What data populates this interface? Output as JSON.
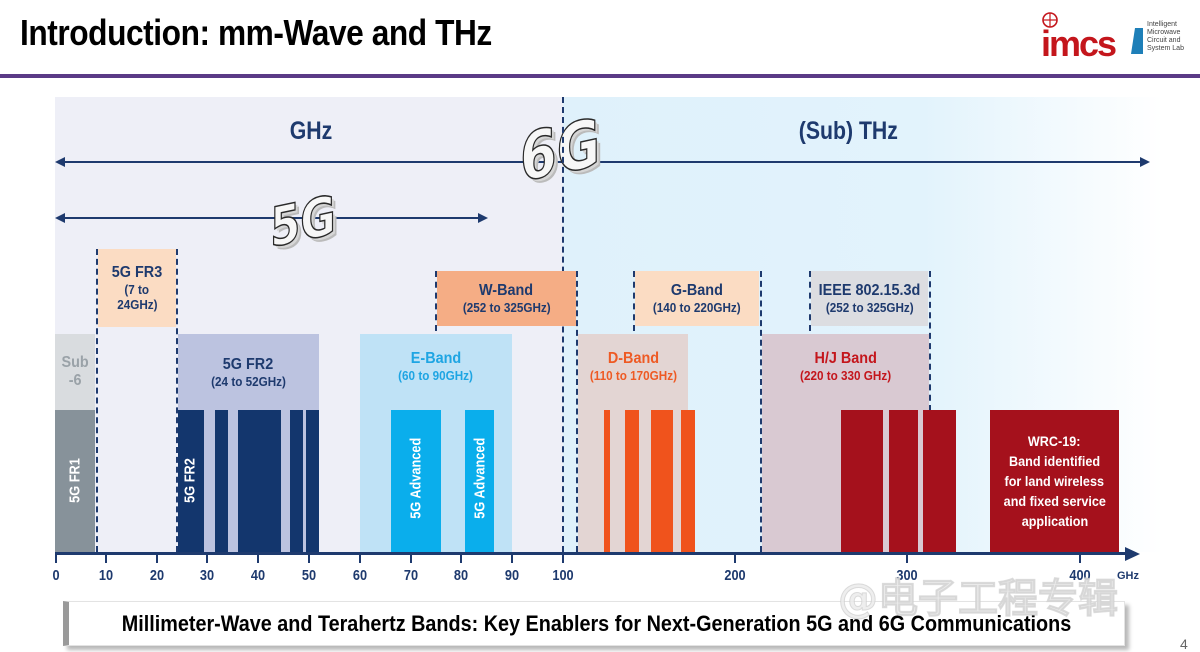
{
  "header": {
    "title": "Introduction: mm-Wave and THz",
    "logo_name": "imcs",
    "logo_subtitle": [
      "Intelligent",
      "Microwave",
      "Circuit and",
      "System Lab"
    ]
  },
  "colors": {
    "navy": "#1e3a6e",
    "title_rule": "#5b3a86",
    "logo_red": "#c4161c"
  },
  "diagram": {
    "region_ghz": "GHz",
    "region_thz": "(Sub) THz",
    "badge_5g": "5G",
    "badge_6g": "6G",
    "boxes": {
      "sub6": {
        "l1": "Sub",
        "l2": "-6"
      },
      "fr3": {
        "l1": "5G FR3",
        "l2": "(7 to",
        "l3": "24GHz)"
      },
      "fr2": {
        "l1": "5G FR2",
        "l2": "(24 to 52GHz)"
      },
      "eband": {
        "l1": "E-Band",
        "l2": "(60 to 90GHz)"
      },
      "wband": {
        "l1": "W-Band",
        "l2": "(252 to 325GHz)"
      },
      "dband": {
        "l1": "D-Band",
        "l2": "(110 to 170GHz)"
      },
      "gband": {
        "l1": "G-Band",
        "l2": "(140 to 220GHz)"
      },
      "ieee": {
        "l1": "IEEE 802.15.3d",
        "l2": "(252 to 325GHz)"
      },
      "hjband": {
        "l1": "H/J Band",
        "l2": "(220 to 330 GHz)"
      },
      "wrc": {
        "l1": "WRC-19:",
        "l2": "Band identified",
        "l3": "for land wireless",
        "l4": "and fixed service",
        "l5": "application"
      }
    },
    "vertical_labels": {
      "fr1": "5G FR1",
      "fr2": "5G FR2",
      "adv1": "5G Advanced",
      "adv2": "5G Advanced"
    },
    "axis": {
      "ticks": [
        "0",
        "10",
        "20",
        "30",
        "40",
        "50",
        "60",
        "70",
        "80",
        "90",
        "100",
        "200",
        "300",
        "400"
      ],
      "unit": "GHz"
    }
  },
  "caption": "Millimeter-Wave and Terahertz Bands: Key Enablers for Next-Generation 5G and 6G Communications",
  "watermark": "@电子工程专辑",
  "page_number": "4"
}
